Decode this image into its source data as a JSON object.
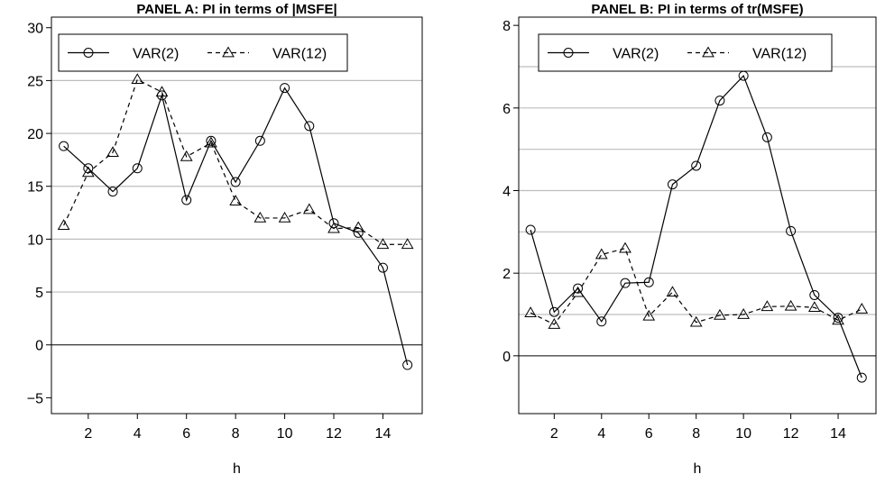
{
  "chart_data": [
    {
      "type": "line",
      "title": "PANEL A: PI in terms of |MSFE|",
      "xlabel": "h",
      "ylabel": "",
      "xlim": [
        0.5,
        15.6
      ],
      "ylim": [
        -6.5,
        31
      ],
      "x": [
        1,
        2,
        3,
        4,
        5,
        6,
        7,
        8,
        9,
        10,
        11,
        12,
        13,
        14,
        15
      ],
      "xticks": [
        2,
        4,
        6,
        8,
        10,
        12,
        14
      ],
      "xtick_labels": [
        "2",
        "4",
        "6",
        "8",
        "10",
        "12",
        "14"
      ],
      "yticks": [
        -5,
        0,
        5,
        10,
        15,
        20,
        25,
        30
      ],
      "ytick_labels": [
        "−5",
        "0",
        "5",
        "10",
        "15",
        "20",
        "25",
        "30"
      ],
      "hgrid": [
        5,
        10,
        15,
        20,
        25
      ],
      "zero_line": true,
      "legend_position": "top-left",
      "series": [
        {
          "name": "VAR(2)",
          "marker": "circle",
          "dash": "solid",
          "values": [
            18.8,
            16.7,
            14.5,
            16.7,
            23.6,
            13.7,
            19.3,
            15.4,
            19.3,
            24.3,
            20.7,
            11.5,
            10.6,
            7.3,
            -1.9
          ]
        },
        {
          "name": "VAR(12)",
          "marker": "triangle",
          "dash": "dashed",
          "values": [
            11.3,
            16.3,
            18.2,
            25.1,
            23.9,
            17.8,
            19.1,
            13.6,
            12.0,
            12.0,
            12.8,
            11.0,
            11.1,
            9.5,
            9.5
          ]
        }
      ]
    },
    {
      "type": "line",
      "title": "PANEL B: PI in terms of tr(MSFE)",
      "xlabel": "h",
      "ylabel": "",
      "xlim": [
        0.5,
        15.6
      ],
      "ylim": [
        -1.4,
        8.2
      ],
      "x": [
        1,
        2,
        3,
        4,
        5,
        6,
        7,
        8,
        9,
        10,
        11,
        12,
        13,
        14,
        15
      ],
      "xticks": [
        2,
        4,
        6,
        8,
        10,
        12,
        14
      ],
      "xtick_labels": [
        "2",
        "4",
        "6",
        "8",
        "10",
        "12",
        "14"
      ],
      "yticks": [
        0,
        2,
        4,
        6,
        8
      ],
      "ytick_labels": [
        "0",
        "2",
        "4",
        "6",
        "8"
      ],
      "hgrid": [
        1,
        2,
        3,
        4,
        5,
        6,
        7
      ],
      "zero_line": true,
      "legend_position": "top-left",
      "series": [
        {
          "name": "VAR(2)",
          "marker": "circle",
          "dash": "solid",
          "values": [
            3.05,
            1.06,
            1.63,
            0.83,
            1.76,
            1.78,
            4.15,
            4.6,
            6.18,
            6.78,
            5.29,
            3.02,
            1.47,
            0.92,
            -0.53
          ]
        },
        {
          "name": "VAR(12)",
          "marker": "triangle",
          "dash": "dashed",
          "values": [
            1.04,
            0.76,
            1.53,
            2.45,
            2.6,
            0.96,
            1.54,
            0.81,
            0.98,
            1.0,
            1.19,
            1.2,
            1.17,
            0.86,
            1.13
          ]
        }
      ]
    }
  ]
}
